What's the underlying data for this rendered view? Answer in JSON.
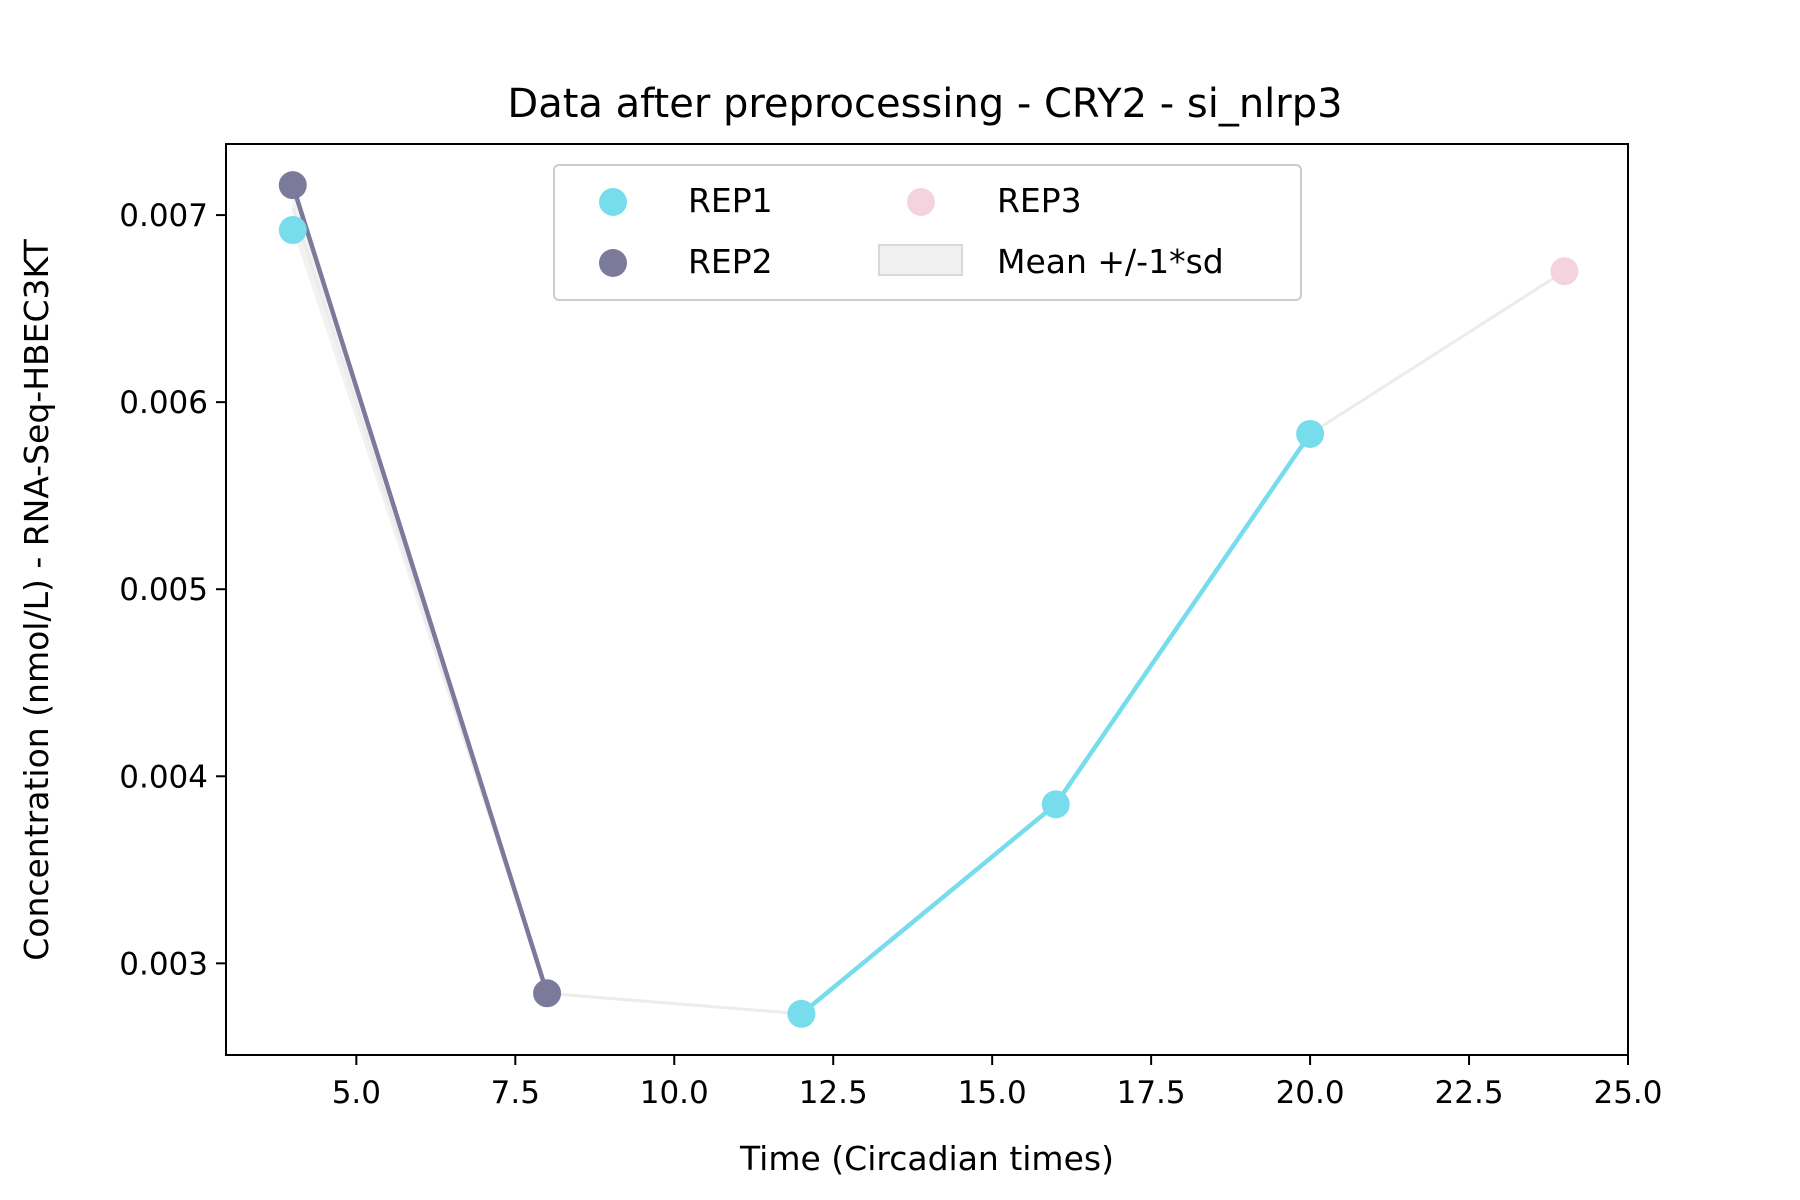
{
  "chart_data": {
    "type": "line",
    "title": "Data after preprocessing - CRY2 - si_nlrp3",
    "xlabel": "Time (Circadian times)",
    "ylabel": "Concentration (nmol/L) - RNA-Seq-HBEC3KT",
    "xlim": [
      2.95,
      25.0
    ],
    "ylim": [
      0.00251,
      0.00738
    ],
    "xticks": [
      5.0,
      7.5,
      10.0,
      12.5,
      15.0,
      17.5,
      20.0,
      22.5,
      25.0
    ],
    "xtick_labels": [
      "5.0",
      "7.5",
      "10.0",
      "12.5",
      "15.0",
      "17.5",
      "20.0",
      "22.5",
      "25.0"
    ],
    "yticks": [
      0.003,
      0.004,
      0.005,
      0.006,
      0.007
    ],
    "ytick_labels": [
      "0.003",
      "0.004",
      "0.005",
      "0.006",
      "0.007"
    ],
    "grid": false,
    "legend": {
      "placement": "upper-center",
      "columns": 2,
      "entries": [
        "REP1",
        "REP2",
        "REP3",
        "Mean +/-1*sd"
      ]
    },
    "series": [
      {
        "name": "REP1",
        "color": "#77dded",
        "points": [
          [
            4,
            0.00692
          ],
          [
            12,
            0.00273
          ],
          [
            16,
            0.00385
          ],
          [
            20,
            0.00583
          ]
        ],
        "line_segments": [
          [
            12,
            16
          ],
          [
            16,
            20
          ]
        ]
      },
      {
        "name": "REP2",
        "color": "#7c7a9a",
        "points": [
          [
            4,
            0.00716
          ],
          [
            8,
            0.00284
          ]
        ],
        "line_segments": [
          [
            4,
            8
          ]
        ]
      },
      {
        "name": "REP3",
        "color": "#f4d3df",
        "points": [
          [
            24,
            0.0067
          ]
        ],
        "line_segments": []
      }
    ],
    "mean_band": {
      "name": "Mean +/-1*sd",
      "color": "#ececec",
      "x": [
        4,
        8,
        12,
        16,
        20,
        24
      ],
      "mean": [
        0.00704,
        0.00284,
        0.00273,
        0.00385,
        0.00583,
        0.0067
      ],
      "lower": [
        0.00692,
        0.00284,
        0.00273,
        0.00385,
        0.00583,
        0.0067
      ],
      "upper": [
        0.00716,
        0.00284,
        0.00273,
        0.00385,
        0.00583,
        0.0067
      ]
    }
  }
}
